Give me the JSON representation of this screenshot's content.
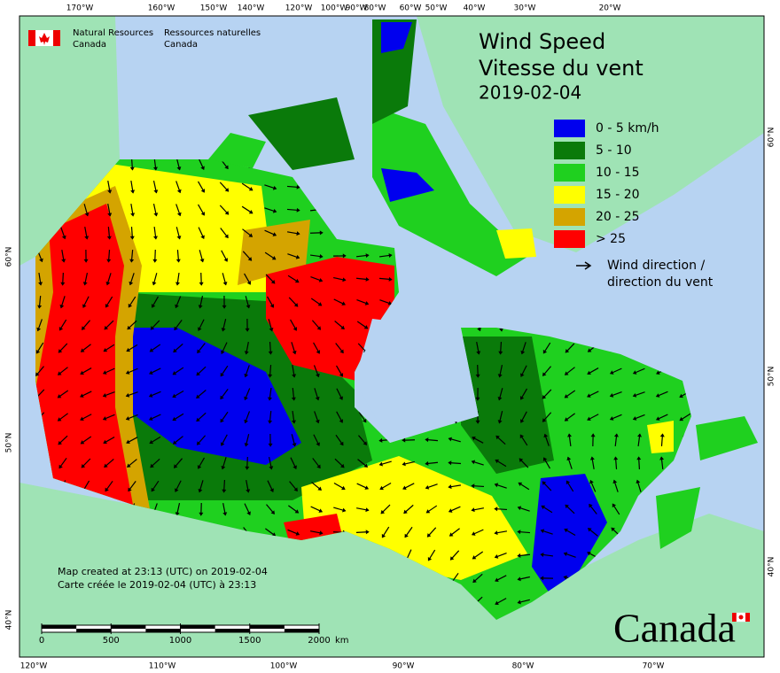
{
  "header": {
    "dept_en": [
      "Natural Resources",
      "Canada"
    ],
    "dept_fr": [
      "Ressources naturelles",
      "Canada"
    ]
  },
  "title": {
    "en": "Wind Speed",
    "fr": "Vitesse du vent",
    "date": "2019-02-04"
  },
  "legend": {
    "classes": [
      {
        "label": "0 - 5 km/h",
        "color": "#0000ee"
      },
      {
        "label": "5 - 10",
        "color": "#0a7a0a"
      },
      {
        "label": "10 - 15",
        "color": "#1fd01f"
      },
      {
        "label": "15 - 20",
        "color": "#ffff00"
      },
      {
        "label": "20 - 25",
        "color": "#d4a400"
      },
      {
        "label": "> 25",
        "color": "#ff0000"
      }
    ],
    "direction": [
      "Wind direction /",
      "direction du vent"
    ]
  },
  "graticule": {
    "top": [
      "170°W",
      "160°W",
      "150°W",
      "140°W",
      "120°W",
      "100°W",
      "90°W",
      "80°W",
      "60°W",
      "50°W",
      "40°W",
      "30°W",
      "20°W"
    ],
    "bottom": [
      "120°W",
      "110°W",
      "100°W",
      "90°W",
      "80°W",
      "70°W"
    ],
    "left": [
      "60°N",
      "50°N",
      "40°N"
    ],
    "right": [
      "60°N",
      "50°N",
      "40°N"
    ]
  },
  "footer": [
    "Map created at 23:13 (UTC) on 2019-02-04",
    "Carte créée le 2019-02-04 (UTC) à 23:13"
  ],
  "scale_bar": {
    "ticks": [
      0,
      500,
      1000,
      1500,
      2000
    ],
    "unit": "km"
  },
  "wordmark": "Canada"
}
